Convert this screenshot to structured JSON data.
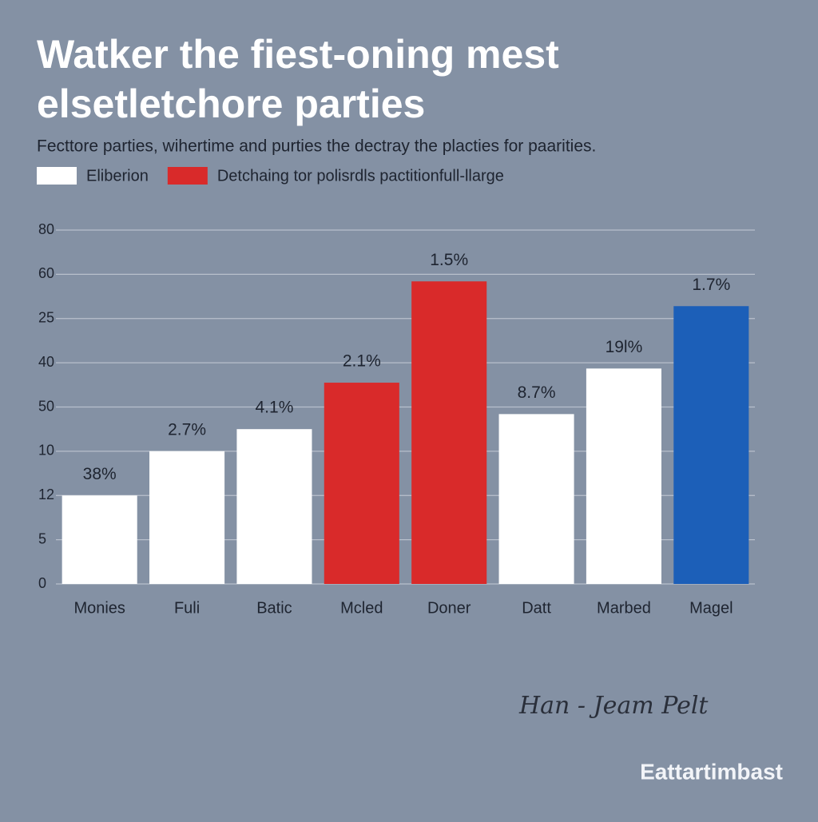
{
  "chart_data": {
    "type": "bar",
    "title": [
      "Watker the fiest-oning mest",
      "elsetletchore parties"
    ],
    "subtitle": "Fecttore parties, wihertime and purties the dectray the placties for paarities.",
    "legend": [
      {
        "name": "Eliberion",
        "color": "#ffffff"
      },
      {
        "name": "Detchaing tor polisrdls pactitionfull-llarge",
        "color": "#d92a2a"
      }
    ],
    "categories": [
      "Monies",
      "Fuli",
      "Batic",
      "Mcled",
      "Doner",
      "Datt",
      "Marbed",
      "Magel"
    ],
    "values": [
      20,
      30,
      35,
      45.5,
      68.4,
      38.4,
      48.7,
      62.8
    ],
    "colors": [
      "#ffffff",
      "#ffffff",
      "#ffffff",
      "#d92a2a",
      "#d92a2a",
      "#ffffff",
      "#ffffff",
      "#1c5fb8"
    ],
    "annotations": [
      "38%",
      "2.7%",
      "4.1%",
      "2.1%",
      "1.5%",
      "8.7%",
      "19l%",
      "1.7%"
    ],
    "ylim": [
      0,
      80
    ],
    "yticks": [
      0,
      {
        "value": 10,
        "label": "5"
      },
      {
        "value": 20,
        "label": "12"
      },
      {
        "value": 30,
        "label": "10"
      },
      {
        "value": 40,
        "label": "50"
      },
      {
        "value": 50,
        "label": "40"
      },
      {
        "value": 60,
        "label": "25"
      },
      {
        "value": 70,
        "label": "60"
      },
      80
    ],
    "grid": true,
    "signature": "Han - Jeam Pelt",
    "watermark": "Eattartimbast"
  }
}
